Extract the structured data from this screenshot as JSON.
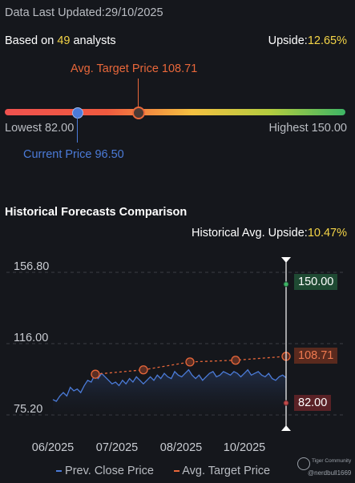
{
  "header": {
    "last_updated": "Data Last Updated:29/10/2025",
    "based_on_prefix": "Based on ",
    "analyst_count": "49",
    "based_on_suffix": " analysts",
    "upside_label": "Upside:",
    "upside_value": "12.65%"
  },
  "gauge": {
    "avg_target_label": "Avg. Target Price 108.71",
    "lowest_label": "Lowest 82.00",
    "highest_label": "Highest 150.00",
    "current_label": "Current Price 96.50",
    "lowest": 82.0,
    "highest": 150.0,
    "avg_target": 108.71,
    "current": 96.5
  },
  "historical": {
    "title": "Historical Forecasts Comparison",
    "avg_upside_label": "Historical Avg. Upside:",
    "avg_upside_value": "10.47%"
  },
  "chart_data": {
    "type": "line",
    "y_ticks": [
      "156.80",
      "116.00",
      "75.20"
    ],
    "ylim": [
      75.2,
      156.8
    ],
    "x_ticks": [
      "06/2025",
      "07/2025",
      "08/2025",
      "10/2025"
    ],
    "series": [
      {
        "name": "Prev. Close Price",
        "color": "#4b7bd8",
        "values": [
          84,
          83,
          86,
          88,
          86,
          91,
          89,
          90,
          88,
          92,
          95,
          94,
          98,
          96,
          99,
          97,
          95,
          93,
          94,
          92,
          95,
          93,
          96,
          94,
          97,
          95,
          93,
          95,
          97,
          95,
          98,
          96,
          99,
          97,
          96,
          100,
          98,
          97,
          99,
          101,
          98,
          96,
          98,
          95,
          97,
          99,
          100,
          97,
          98,
          100,
          99,
          98,
          100,
          99,
          97,
          99,
          101,
          98,
          99,
          100,
          98,
          97,
          99,
          96,
          95,
          97,
          98,
          96.5
        ]
      },
      {
        "name": "Avg. Target Price",
        "color": "#e8673a",
        "points": [
          {
            "x": "07/2025",
            "y": 98.5
          },
          {
            "x": "07/2025b",
            "y": 101
          },
          {
            "x": "08/2025",
            "y": 105.5
          },
          {
            "x": "10/2025",
            "y": 106.5
          },
          {
            "x": "end",
            "y": 108.71
          }
        ]
      }
    ],
    "end_labels": {
      "high": "150.00",
      "avg": "108.71",
      "low": "82.00"
    },
    "legend": [
      "Prev. Close Price",
      "Avg. Target Price"
    ]
  },
  "watermark": {
    "brand": "Tiger Community",
    "handle": "@nerdbull1669"
  },
  "colors": {
    "high_badge": "#1f4a33",
    "avg_badge": "#7a2e1c",
    "low_badge": "#5a2226"
  }
}
